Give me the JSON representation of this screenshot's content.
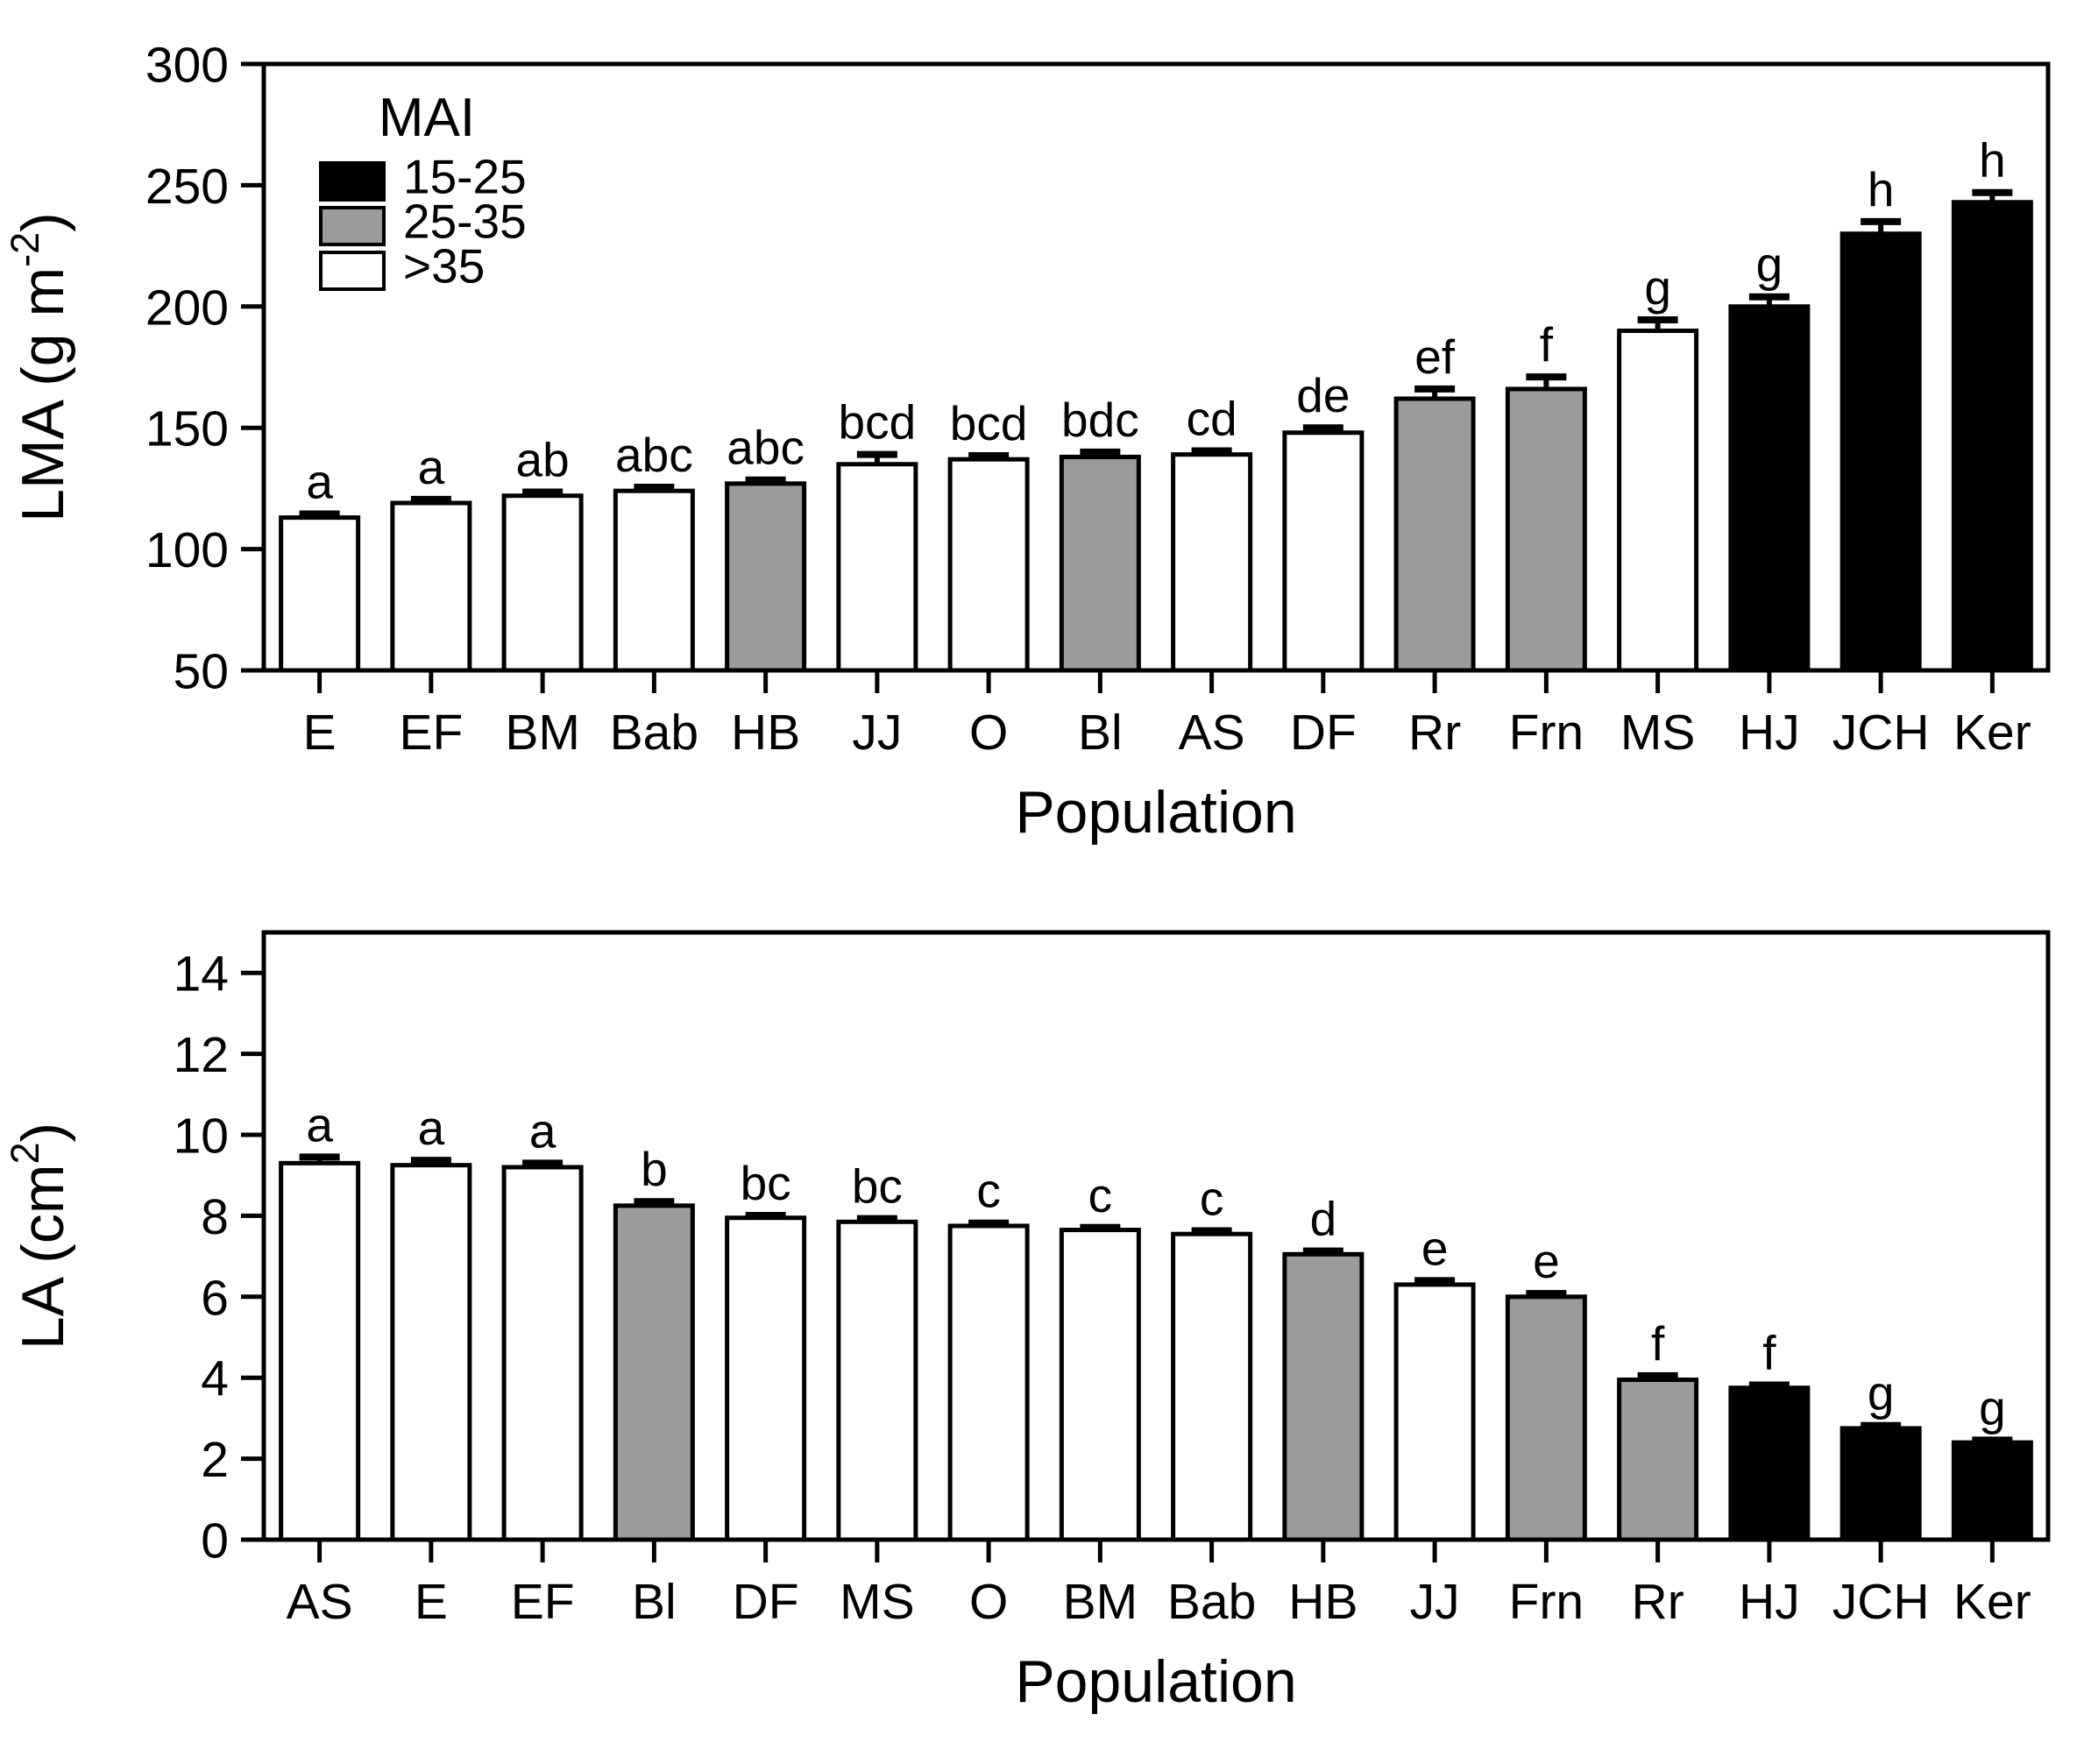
{
  "figure": {
    "background": "#ffffff",
    "foreground": "#000000"
  },
  "group_colors": {
    "15-25": "#000000",
    "25-35": "#9b9b9b",
    ">35": "#ffffff"
  },
  "chart_data": [
    {
      "type": "bar",
      "title": "",
      "xlabel": "Population",
      "ylabel": {
        "pre": "LMA (g m",
        "sup": "-2",
        "post": ")"
      },
      "ylim": [
        50,
        300
      ],
      "yticks": [
        50,
        100,
        150,
        200,
        250,
        300
      ],
      "grid": false,
      "legend": {
        "title": "MAI",
        "position": "upper-left-inside",
        "entries": [
          {
            "label": "15-25",
            "group": "15-25"
          },
          {
            "label": "25-35",
            "group": "25-35"
          },
          {
            "label": ">35",
            "group": ">35"
          }
        ]
      },
      "categories": [
        "E",
        "EF",
        "BM",
        "Bab",
        "HB",
        "JJ",
        "O",
        "Bl",
        "AS",
        "DF",
        "Rr",
        "Frn",
        "MS",
        "HJ",
        "JCH",
        "Ker"
      ],
      "series": [
        {
          "name": "LMA",
          "values": [
            113,
            119,
            122,
            124,
            127,
            135,
            137,
            138,
            139,
            148,
            162,
            166,
            190,
            200,
            230,
            243
          ],
          "errors": [
            1.5,
            1.5,
            1.5,
            1.5,
            1.5,
            4,
            1.5,
            2,
            1.5,
            2,
            4,
            5,
            4.5,
            4,
            5,
            4
          ],
          "letters": [
            "a",
            "a",
            "ab",
            "abc",
            "abc",
            "bcd",
            "bcd",
            "bdc",
            "cd",
            "de",
            "ef",
            "f",
            "g",
            "g",
            "h",
            "h"
          ],
          "groups": [
            ">35",
            ">35",
            ">35",
            ">35",
            "25-35",
            ">35",
            ">35",
            "25-35",
            ">35",
            ">35",
            "25-35",
            "25-35",
            ">35",
            "15-25",
            "15-25",
            "15-25"
          ]
        }
      ]
    },
    {
      "type": "bar",
      "title": "",
      "xlabel": "Population",
      "ylabel": {
        "pre": "LA (cm",
        "sup": "2",
        "post": ")"
      },
      "ylim": [
        0,
        15
      ],
      "yticks": [
        0,
        2,
        4,
        6,
        8,
        10,
        12,
        14
      ],
      "grid": false,
      "legend": null,
      "categories": [
        "AS",
        "E",
        "EF",
        "Bl",
        "DF",
        "MS",
        "O",
        "BM",
        "Bab",
        "HB",
        "JJ",
        "Frn",
        "Rr",
        "HJ",
        "JCH",
        "Ker"
      ],
      "series": [
        {
          "name": "LA",
          "values": [
            9.3,
            9.25,
            9.2,
            8.25,
            7.95,
            7.85,
            7.75,
            7.65,
            7.55,
            7.05,
            6.3,
            6.0,
            3.95,
            3.75,
            2.75,
            2.4
          ],
          "errors": [
            0.15,
            0.12,
            0.1,
            0.1,
            0.06,
            0.08,
            0.07,
            0.06,
            0.08,
            0.08,
            0.1,
            0.08,
            0.1,
            0.07,
            0.07,
            0.06
          ],
          "letters": [
            "a",
            "a",
            "a",
            "b",
            "bc",
            "bc",
            "c",
            "c",
            "c",
            "d",
            "e",
            "e",
            "f",
            "f",
            "g",
            "g"
          ],
          "groups": [
            ">35",
            ">35",
            ">35",
            "25-35",
            ">35",
            ">35",
            ">35",
            ">35",
            ">35",
            "25-35",
            ">35",
            "25-35",
            "25-35",
            "15-25",
            "15-25",
            "15-25"
          ]
        }
      ]
    }
  ]
}
